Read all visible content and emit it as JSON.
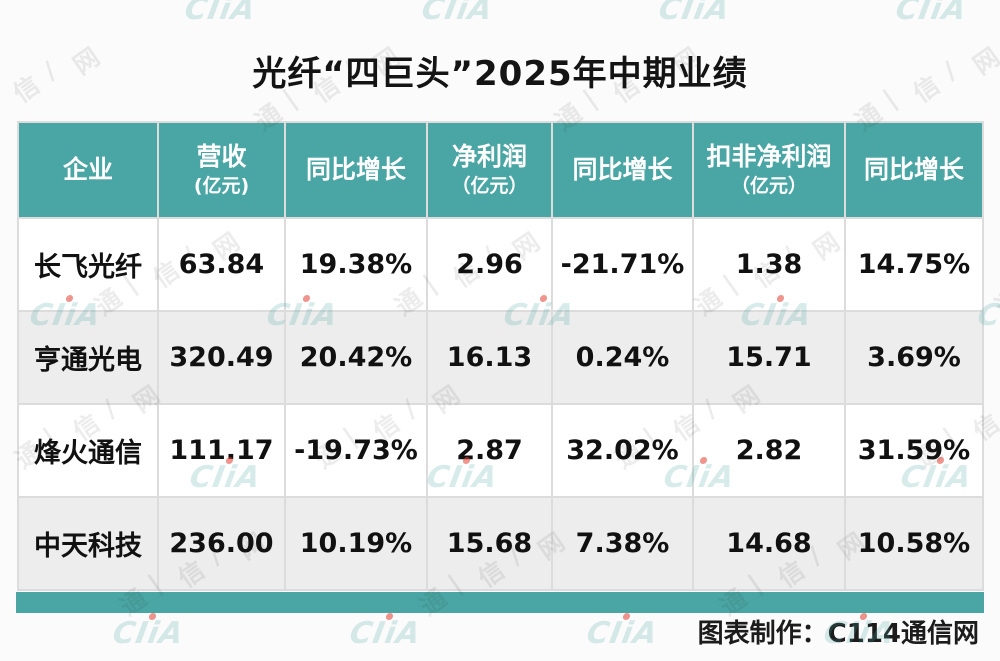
{
  "title": "光纤“四巨头”2025年中期业绩",
  "table": {
    "columns": [
      {
        "label": "企业",
        "sub": ""
      },
      {
        "label": "营收",
        "sub": "(亿元)"
      },
      {
        "label": "同比增长",
        "sub": ""
      },
      {
        "label": "净利润",
        "sub": "（亿元）"
      },
      {
        "label": "同比增长",
        "sub": ""
      },
      {
        "label": "扣非净利润",
        "sub": "（亿元）"
      },
      {
        "label": "同比增长",
        "sub": ""
      }
    ],
    "rows": [
      {
        "company": "长飞光纤",
        "values": [
          "63.84",
          "19.38%",
          "2.96",
          "-21.71%",
          "1.38",
          "14.75%"
        ]
      },
      {
        "company": "亨通光电",
        "values": [
          "320.49",
          "20.42%",
          "16.13",
          "0.24%",
          "15.71",
          "3.69%"
        ]
      },
      {
        "company": "烽火通信",
        "values": [
          "111.17",
          "-19.73%",
          "2.87",
          "32.02%",
          "2.82",
          "31.59%"
        ]
      },
      {
        "company": "中天科技",
        "values": [
          "236.00",
          "10.19%",
          "15.68",
          "7.38%",
          "14.68",
          "10.58%"
        ]
      }
    ]
  },
  "footer": {
    "credit": "图表制作：C114通信网"
  },
  "watermark": {
    "logo": "CIiA",
    "sequence": [
      "通",
      "|",
      "信",
      "/",
      "网"
    ]
  },
  "colors": {
    "teal": "#4AA6A4",
    "row_alt": "#EDEDED",
    "border": "#DCDCDC"
  },
  "chart_data": {
    "type": "table",
    "title": "光纤“四巨头”2025年中期业绩",
    "columns": [
      "企业",
      "营收(亿元)",
      "同比增长",
      "净利润（亿元）",
      "同比增长",
      "扣非净利润（亿元）",
      "同比增长"
    ],
    "rows": [
      [
        "长飞光纤",
        "63.84",
        "19.38%",
        "2.96",
        "-21.71%",
        "1.38",
        "14.75%"
      ],
      [
        "亨通光电",
        "320.49",
        "20.42%",
        "16.13",
        "0.24%",
        "15.71",
        "3.69%"
      ],
      [
        "烽火通信",
        "111.17",
        "-19.73%",
        "2.87",
        "32.02%",
        "2.82",
        "31.59%"
      ],
      [
        "中天科技",
        "236.00",
        "10.19%",
        "15.68",
        "7.38%",
        "14.68",
        "10.58%"
      ]
    ],
    "source_credit": "图表制作：C114通信网"
  }
}
